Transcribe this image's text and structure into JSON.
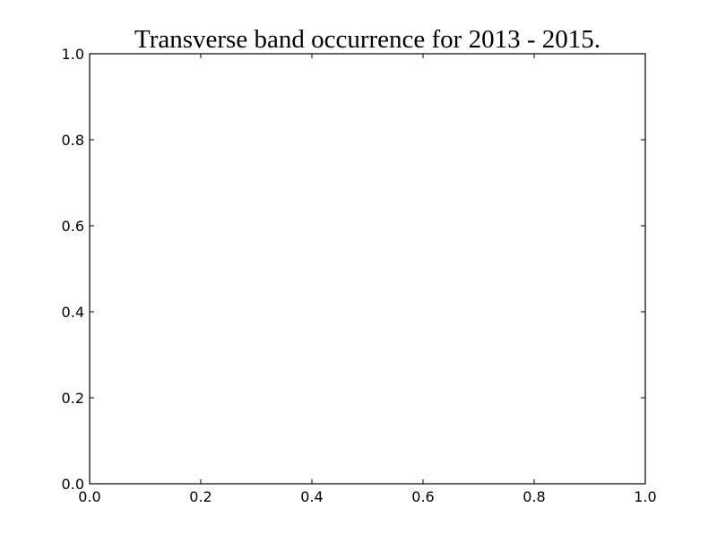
{
  "chart_data": {
    "type": "line",
    "title": "Transverse band occurrence for 2013 - 2015.",
    "xlabel": "",
    "ylabel": "",
    "xlim": [
      0.0,
      1.0
    ],
    "ylim": [
      0.0,
      1.0
    ],
    "xticks": [
      0.0,
      0.2,
      0.4,
      0.6,
      0.8,
      1.0
    ],
    "yticks": [
      0.0,
      0.2,
      0.4,
      0.6,
      0.8,
      1.0
    ],
    "xtick_labels": [
      "0.0",
      "0.2",
      "0.4",
      "0.6",
      "0.8",
      "1.0"
    ],
    "ytick_labels": [
      "0.0",
      "0.2",
      "0.4",
      "0.6",
      "0.8",
      "1.0"
    ],
    "series": [],
    "grid": false,
    "legend": "none"
  }
}
